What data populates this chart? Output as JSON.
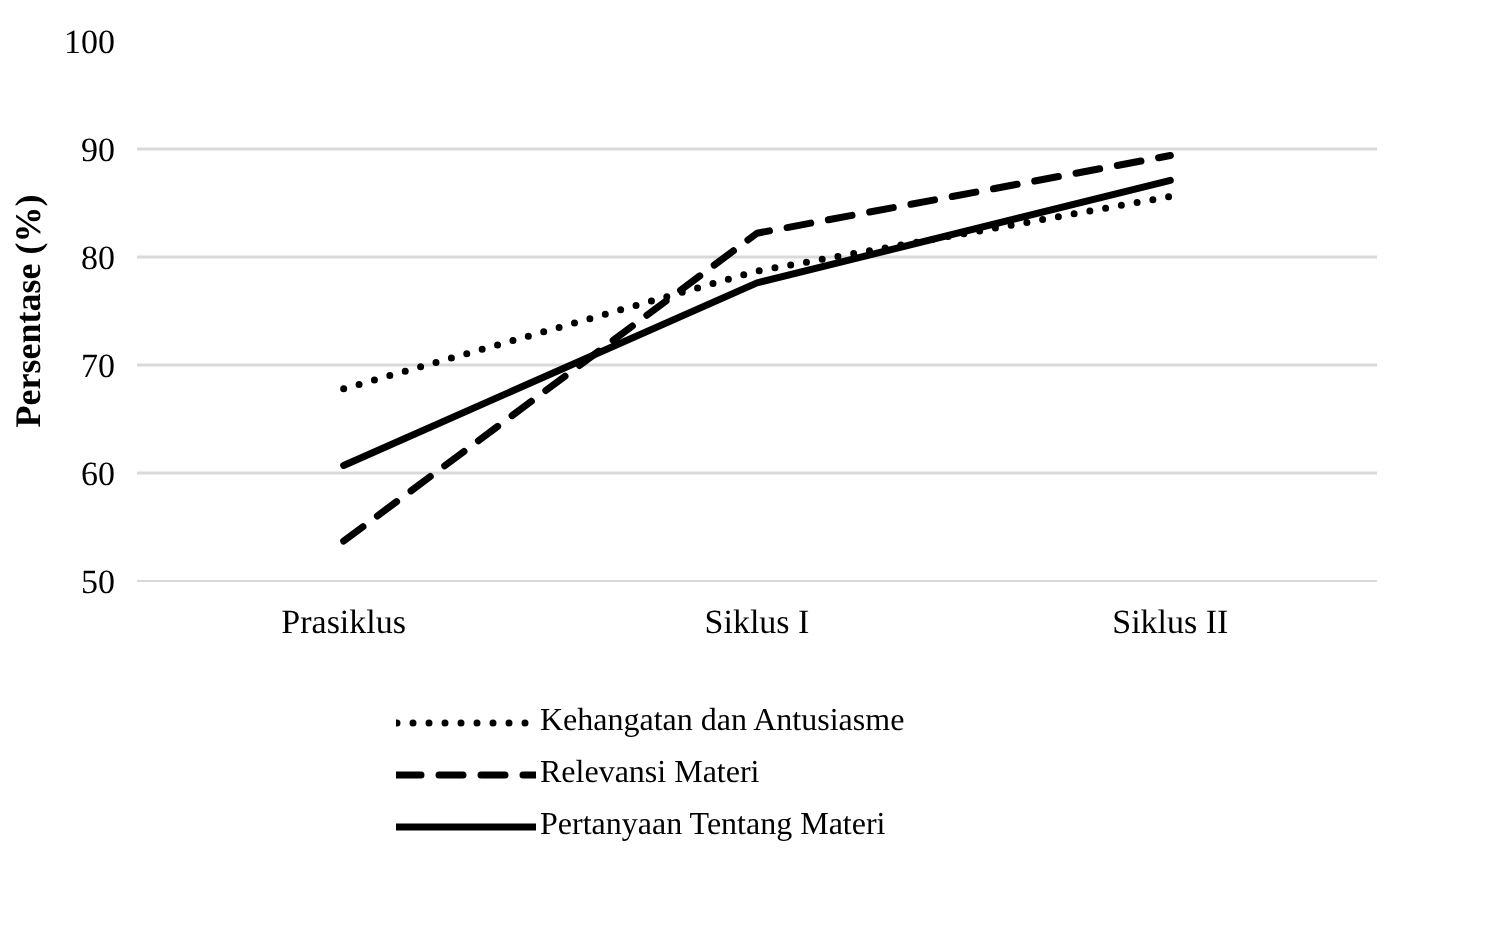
{
  "chart_data": {
    "type": "line",
    "ylabel": "Persentase (%)",
    "categories": [
      "Prasiklus",
      "Siklus I",
      "Siklus II"
    ],
    "series": [
      {
        "name": "Kehangatan dan Antusiasme",
        "color": "#000000",
        "line_style": "dotted",
        "values": [
          67.8,
          78.7,
          85.6
        ]
      },
      {
        "name": "Relevansi Materi",
        "color": "#000000",
        "line_style": "dashed",
        "values": [
          53.7,
          82.2,
          89.4
        ]
      },
      {
        "name": "Pertanyaan Tentang Materi",
        "color": "#000000",
        "line_style": "solid",
        "values": [
          60.7,
          77.6,
          87.1
        ]
      }
    ],
    "ylim": [
      50,
      100
    ],
    "yticks": [
      50,
      60,
      70,
      80,
      90,
      100
    ],
    "grid": "y",
    "legend": "bottom left",
    "marker": "none"
  }
}
